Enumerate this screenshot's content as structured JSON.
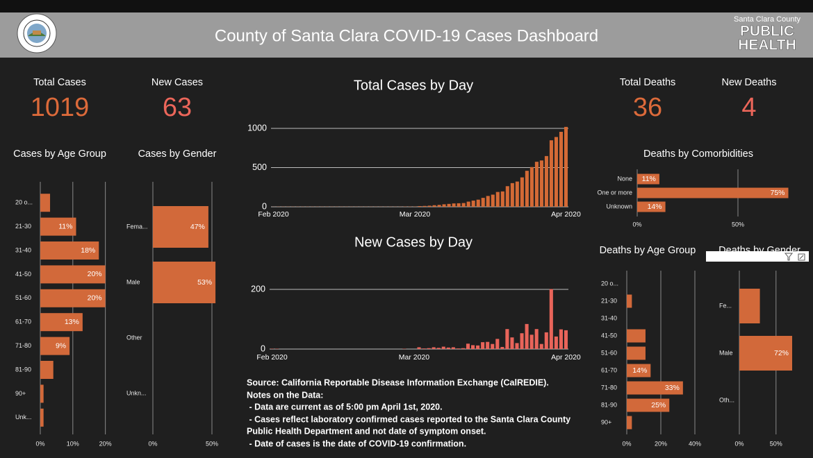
{
  "header": {
    "title": "County of Santa Clara COVID-19 Cases Dashboard",
    "logo_top": "Santa Clara County",
    "logo_line1": "PUBLIC",
    "logo_line2": "HEALTH"
  },
  "kpis": [
    {
      "label": "Total Cases",
      "value": "1019"
    },
    {
      "label": "New Cases",
      "value": "63"
    },
    {
      "label": "Total Deaths",
      "value": "36"
    },
    {
      "label": "New Deaths",
      "value": "4"
    }
  ],
  "notes": [
    "Source: California Reportable Disease Information Exchange (CalREDIE).",
    "Notes on the Data:",
    " - Data are current as of 5:00 pm April 1st, 2020.",
    " - Cases reflect laboratory confirmed cases reported to the Santa Clara County",
    "Public Health Department and not date of symptom onset.",
    " - Date of cases is the date of COVID-19 confirmation."
  ],
  "chart_data": [
    {
      "type": "bar",
      "orientation": "horizontal",
      "title": "Cases by Age Group",
      "color": "#d2693a",
      "grid": true,
      "categories": [
        "20 o...",
        "21-30",
        "31-40",
        "41-50",
        "51-60",
        "61-70",
        "71-80",
        "81-90",
        "90+",
        "Unk..."
      ],
      "values": [
        3,
        11,
        18,
        20,
        20,
        13,
        9,
        4,
        1,
        1
      ],
      "value_labels": [
        null,
        "11%",
        "18%",
        "20%",
        "20%",
        "13%",
        "9%",
        null,
        null,
        null
      ],
      "xlim": [
        0,
        22
      ],
      "xticks": [
        {
          "value": 0,
          "label": "0%"
        },
        {
          "value": 10,
          "label": "10%"
        },
        {
          "value": 20,
          "label": "20%"
        }
      ]
    },
    {
      "type": "bar",
      "orientation": "horizontal",
      "title": "Cases by Gender",
      "color": "#d2693a",
      "grid": true,
      "categories": [
        "Fema...",
        "Male",
        "Other",
        "Unkn..."
      ],
      "values": [
        47,
        53,
        0,
        0
      ],
      "value_labels": [
        "47%",
        "53%",
        null,
        null
      ],
      "xlim": [
        0,
        55
      ],
      "xticks": [
        {
          "value": 0,
          "label": "0%"
        },
        {
          "value": 50,
          "label": "50%"
        }
      ]
    },
    {
      "type": "bar",
      "orientation": "vertical",
      "title": "Total Cases by Day",
      "color": "#d46a36",
      "grid": true,
      "categories": [
        "Feb 2020",
        null,
        null,
        null,
        null,
        null,
        null,
        null,
        null,
        null,
        null,
        null,
        null,
        null,
        null,
        null,
        null,
        null,
        null,
        null,
        null,
        null,
        null,
        null,
        null,
        null,
        null,
        null,
        null,
        "Mar 2020",
        null,
        null,
        null,
        null,
        null,
        null,
        null,
        null,
        null,
        null,
        null,
        null,
        null,
        null,
        null,
        null,
        null,
        null,
        null,
        null,
        null,
        null,
        null,
        null,
        null,
        null,
        null,
        null,
        null,
        null,
        "Apr 2020"
      ],
      "values": [
        1,
        2,
        2,
        2,
        2,
        2,
        2,
        2,
        2,
        2,
        2,
        2,
        2,
        2,
        2,
        2,
        2,
        2,
        2,
        2,
        2,
        2,
        2,
        2,
        2,
        2,
        2,
        3,
        3,
        3,
        9,
        11,
        14,
        20,
        24,
        32,
        37,
        43,
        45,
        48,
        66,
        79,
        91,
        114,
        138,
        155,
        189,
        196,
        263,
        302,
        322,
        375,
        459,
        507,
        574,
        591,
        647,
        848,
        890,
        956,
        1019
      ],
      "ylim": [
        0,
        1000
      ],
      "yticks": [
        0,
        500,
        1000
      ]
    },
    {
      "type": "bar",
      "orientation": "vertical",
      "title": "New Cases by Day",
      "color": "#e8645a",
      "grid": true,
      "categories": [
        "Feb 2020",
        null,
        null,
        null,
        null,
        null,
        null,
        null,
        null,
        null,
        null,
        null,
        null,
        null,
        null,
        null,
        null,
        null,
        null,
        null,
        null,
        null,
        null,
        null,
        null,
        null,
        null,
        null,
        null,
        "Mar 2020",
        null,
        null,
        null,
        null,
        null,
        null,
        null,
        null,
        null,
        null,
        null,
        null,
        null,
        null,
        null,
        null,
        null,
        null,
        null,
        null,
        null,
        null,
        null,
        null,
        null,
        null,
        null,
        null,
        null,
        null,
        "Apr 2020"
      ],
      "values": [
        1,
        1,
        0,
        0,
        0,
        0,
        0,
        0,
        0,
        0,
        0,
        0,
        0,
        0,
        0,
        0,
        0,
        0,
        0,
        0,
        0,
        0,
        0,
        0,
        0,
        0,
        0,
        1,
        0,
        0,
        6,
        2,
        3,
        6,
        4,
        8,
        5,
        6,
        2,
        3,
        18,
        13,
        12,
        23,
        24,
        17,
        34,
        7,
        67,
        39,
        20,
        53,
        84,
        48,
        67,
        17,
        56,
        201,
        42,
        66,
        63
      ],
      "ylim": [
        0,
        200
      ],
      "yticks": [
        0,
        200
      ]
    },
    {
      "type": "bar",
      "orientation": "horizontal",
      "title": "Deaths by Comorbidities",
      "color": "#d2693a",
      "grid": true,
      "categories": [
        "None",
        "One or more",
        "Unknown"
      ],
      "values": [
        11,
        75,
        14
      ],
      "value_labels": [
        "11%",
        "75%",
        "14%"
      ],
      "xlim": [
        0,
        76
      ],
      "xticks": [
        {
          "value": 0,
          "label": "0%"
        },
        {
          "value": 50,
          "label": "50%"
        }
      ]
    },
    {
      "type": "bar",
      "orientation": "horizontal",
      "title": "Deaths by Age Group",
      "color": "#d2693a",
      "grid": true,
      "categories": [
        "20 o...",
        "21-30",
        "31-40",
        "41-50",
        "51-60",
        "61-70",
        "71-80",
        "81-90",
        "90+"
      ],
      "values": [
        0,
        3,
        0,
        11,
        11,
        14,
        33,
        25,
        3
      ],
      "value_labels": [
        null,
        null,
        null,
        null,
        null,
        "14%",
        "33%",
        "25%",
        null
      ],
      "xlim": [
        0,
        45
      ],
      "xticks": [
        {
          "value": 0,
          "label": "0%"
        },
        {
          "value": 20,
          "label": "20%"
        },
        {
          "value": 40,
          "label": "40%"
        }
      ]
    },
    {
      "type": "bar",
      "orientation": "horizontal",
      "title": "Deaths by Gender",
      "color": "#d2693a",
      "grid": true,
      "categories": [
        "Fe...",
        "Male",
        "Oth..."
      ],
      "values": [
        28,
        72,
        0
      ],
      "value_labels": [
        null,
        "72%",
        null
      ],
      "xlim": [
        0,
        72
      ],
      "xticks": [
        {
          "value": 0,
          "label": "0%"
        },
        {
          "value": 50,
          "label": "50%"
        }
      ]
    }
  ]
}
